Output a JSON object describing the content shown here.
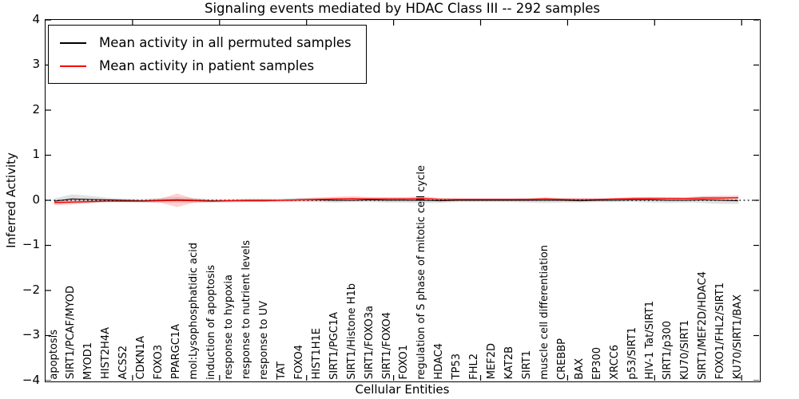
{
  "title": "Signaling events mediated by HDAC Class III -- 292 samples",
  "axes": {
    "xlabel": "Cellular Entities",
    "ylabel": "Inferred Activity"
  },
  "legend": {
    "items": [
      {
        "label": "Mean activity in all permuted samples",
        "color": "#000000"
      },
      {
        "label": "Mean activity in patient samples",
        "color": "#ff0000"
      }
    ]
  },
  "chart_data": {
    "type": "line",
    "title": "Signaling events mediated by HDAC Class III -- 292 samples",
    "xlabel": "Cellular Entities",
    "ylabel": "Inferred Activity",
    "ylim": [
      -4,
      4
    ],
    "yticks": [
      4,
      3,
      2,
      1,
      0,
      -1,
      -2,
      -3,
      -4
    ],
    "xlim": [
      0,
      41
    ],
    "xticks": [
      5,
      10,
      15,
      20,
      25,
      30,
      35,
      40
    ],
    "grid": false,
    "legend_position": "upper left",
    "reference_line": {
      "y": 0,
      "style": "dotted",
      "color": "#000000"
    },
    "categories": [
      "apoptosis",
      "SIRT1/PCAF/MYOD",
      "MYOD1",
      "HIST2H4A",
      "ACSS2",
      "CDKN1A",
      "FOXO3",
      "PPARGC1A",
      "mol:Lysophosphatidic acid",
      "induction of apoptosis",
      "response to hypoxia",
      "response to nutrient levels",
      "response to UV",
      "TAT",
      "FOXO4",
      "HIST1H1E",
      "SIRT1/PGC1A",
      "SIRT1/Histone H1b",
      "SIRT1/FOXO3a",
      "SIRT1/FOXO4",
      "FOXO1",
      "regulation of S phase of mitotic cell cycle",
      "HDAC4",
      "TP53",
      "FHL2",
      "MEF2D",
      "KAT2B",
      "SIRT1",
      "muscle cell differentiation",
      "CREBBP",
      "BAX",
      "EP300",
      "XRCC6",
      "p53/SIRT1",
      "HIV-1 Tat/SIRT1",
      "SIRT1/p300",
      "KU70/SIRT1",
      "SIRT1/MEF2D/HDAC4",
      "FOXO1/FHL2/SIRT1",
      "KU70/SIRT1/BAX"
    ],
    "series": [
      {
        "name": "Mean activity in all permuted samples",
        "color": "#000000",
        "style": "solid",
        "values": [
          -0.02,
          0.03,
          0.02,
          0.01,
          0.0,
          -0.01,
          0.0,
          0.01,
          0.0,
          -0.01,
          -0.01,
          0.0,
          0.0,
          0.0,
          0.01,
          0.01,
          0.0,
          0.0,
          0.01,
          0.0,
          0.0,
          0.0,
          -0.01,
          0.0,
          0.0,
          0.0,
          0.0,
          0.0,
          0.0,
          0.0,
          -0.01,
          0.0,
          0.0,
          0.01,
          0.01,
          0.0,
          0.0,
          0.01,
          0.0,
          -0.01
        ],
        "band_halfwidth": [
          0.06,
          0.1,
          0.08,
          0.05,
          0.04,
          0.04,
          0.05,
          0.06,
          0.05,
          0.04,
          0.04,
          0.04,
          0.04,
          0.04,
          0.04,
          0.05,
          0.05,
          0.04,
          0.05,
          0.05,
          0.05,
          0.06,
          0.05,
          0.04,
          0.04,
          0.04,
          0.04,
          0.05,
          0.06,
          0.05,
          0.04,
          0.04,
          0.04,
          0.05,
          0.06,
          0.06,
          0.05,
          0.07,
          0.08,
          0.07
        ],
        "band_color": "rgba(0,0,0,0.12)"
      },
      {
        "name": "Mean activity in patient samples",
        "color": "#ff0000",
        "style": "solid",
        "values": [
          -0.05,
          -0.04,
          -0.03,
          -0.02,
          -0.02,
          -0.02,
          -0.01,
          0.0,
          -0.01,
          -0.02,
          -0.01,
          -0.01,
          -0.01,
          0.0,
          0.01,
          0.02,
          0.03,
          0.04,
          0.03,
          0.03,
          0.03,
          0.04,
          0.02,
          0.02,
          0.02,
          0.02,
          0.02,
          0.02,
          0.03,
          0.02,
          0.02,
          0.02,
          0.03,
          0.04,
          0.04,
          0.04,
          0.04,
          0.05,
          0.05,
          0.06
        ],
        "band_halfwidth": [
          0.06,
          0.05,
          0.03,
          0.02,
          0.02,
          0.02,
          0.04,
          0.15,
          0.04,
          0.02,
          0.02,
          0.02,
          0.02,
          0.02,
          0.03,
          0.04,
          0.05,
          0.05,
          0.04,
          0.04,
          0.04,
          0.05,
          0.03,
          0.02,
          0.02,
          0.02,
          0.02,
          0.02,
          0.03,
          0.02,
          0.02,
          0.02,
          0.02,
          0.03,
          0.03,
          0.03,
          0.03,
          0.04,
          0.05,
          0.05
        ],
        "band_color": "rgba(255,0,0,0.18)"
      }
    ]
  }
}
